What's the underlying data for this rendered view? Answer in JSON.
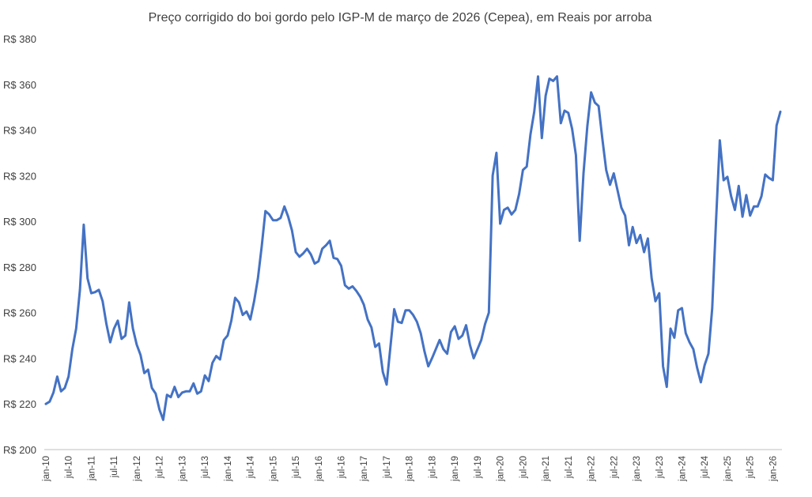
{
  "chart_data": {
    "type": "line",
    "title": "Preço corrigido do boi gordo pelo IGP-M de março de 2026 (Cepea), em Reais por arroba",
    "xlabel": "",
    "ylabel": "",
    "ylim": [
      200,
      380
    ],
    "y_ticks": [
      "R$ 200",
      "R$ 220",
      "R$ 240",
      "R$ 260",
      "R$ 280",
      "R$ 300",
      "R$ 320",
      "R$ 340",
      "R$ 360",
      "R$ 380"
    ],
    "y_tick_values": [
      200,
      220,
      240,
      260,
      280,
      300,
      320,
      340,
      360,
      380
    ],
    "x_tick_labels": [
      "jan-10",
      "jul-10",
      "jan-11",
      "jul-11",
      "jan-12",
      "jul-12",
      "jan-13",
      "jul-13",
      "jan-14",
      "jul-14",
      "jan-15",
      "jul-15",
      "jan-16",
      "jul-16",
      "jan-17",
      "jul-17",
      "jan-18",
      "jul-18",
      "jan-19",
      "jul-19",
      "jan-20",
      "jul-20",
      "jan-21",
      "jul-21",
      "jan-22",
      "jul-22",
      "jan-23",
      "jul-23",
      "jan-24",
      "jul-24",
      "jan-25",
      "jul-25",
      "jan-26"
    ],
    "x_start": "jan-10",
    "x_end": "mar-26",
    "grid": false,
    "legend": "none",
    "series_color": "#4472C4",
    "series": [
      {
        "values": [
          220,
          221,
          225,
          232,
          225.5,
          227,
          232,
          244,
          253,
          270,
          298.5,
          275,
          268.5,
          269,
          270,
          265,
          255,
          247,
          253,
          256.5,
          248.5,
          250,
          264.5,
          253,
          246,
          241.5,
          233.5,
          235,
          227,
          224.5,
          217.5,
          213,
          224,
          223,
          227.5,
          223,
          225,
          225.5,
          225.5,
          229,
          224.5,
          225.5,
          232.5,
          230,
          238,
          241,
          239.5,
          248,
          250,
          256.5,
          266.5,
          264.5,
          259,
          260.5,
          257,
          265,
          275,
          289,
          304.5,
          303,
          300.5,
          300.5,
          301.5,
          306.5,
          302,
          296,
          286.5,
          284.5,
          286,
          288,
          285.5,
          281.5,
          282.5,
          288,
          289.5,
          291.5,
          284,
          283.5,
          280.5,
          272,
          270.5,
          271.5,
          269.5,
          267,
          263.5,
          257,
          253.5,
          245,
          246.5,
          234,
          228.5,
          245,
          261.5,
          256,
          255.5,
          261,
          261,
          259,
          256,
          251,
          243,
          236.5,
          240,
          244,
          248,
          244,
          242,
          251.5,
          254,
          248.5,
          250,
          254.5,
          246,
          240,
          244,
          248,
          255,
          260,
          320,
          330,
          299,
          305,
          306,
          303,
          305,
          312,
          322.5,
          324,
          338,
          348,
          363.5,
          336.5,
          355,
          362.5,
          361.5,
          363.5,
          343,
          348.5,
          347.5,
          340.5,
          329,
          291.5,
          321,
          341.5,
          356.5,
          352,
          350.5,
          336,
          322.5,
          316,
          321,
          313.5,
          306,
          302.5,
          289.5,
          297.5,
          290.5,
          294,
          286.5,
          292.5,
          275,
          265,
          268.5,
          236.5,
          227.5,
          253,
          249,
          261,
          262,
          251,
          247,
          244,
          236,
          229.5,
          237,
          242,
          262,
          300,
          335.5,
          318,
          319.5,
          311,
          305,
          315.5,
          302,
          311.5,
          302.5,
          306.5,
          306.5,
          311,
          320.5,
          319,
          318,
          342,
          348
        ]
      }
    ]
  }
}
